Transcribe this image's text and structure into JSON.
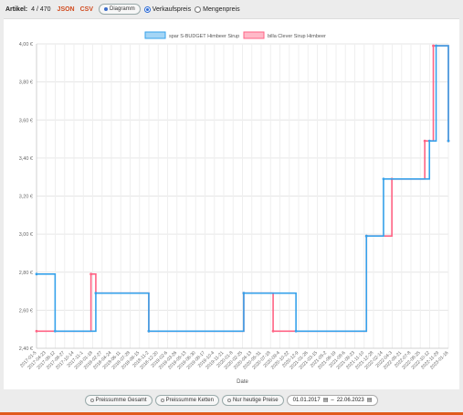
{
  "header": {
    "artikel_label": "Artikel:",
    "artikel_count": "4 / 470",
    "json_label": "JSON",
    "csv_label": "CSV",
    "diagramm_label": "Diagramm",
    "radio_verkaufspreis": "Verkaufspreis",
    "radio_mengenpreis": "Mengenpreis"
  },
  "footer": {
    "btn_gesamt": "Preissumme Gesamt",
    "btn_ketten": "Preissumme Ketten",
    "btn_heutige": "Nur heutige Preise",
    "date_from": "01.01.2017",
    "date_sep": "–",
    "date_to": "22.06.2023"
  },
  "colors": {
    "series_blue": "#36a2eb",
    "series_pink": "#ff6384",
    "accent": "#e05a1c"
  },
  "chart_data": {
    "type": "line",
    "stepped": true,
    "xlabel": "Date",
    "ylabel": "",
    "ylim": [
      2.4,
      4.0
    ],
    "legend_position": "top",
    "grid": true,
    "y_ticks": [
      "4,00 €",
      "3,80 €",
      "3,60 €",
      "3,40 €",
      "3,20 €",
      "3,00 €",
      "2,80 €",
      "2,60 €",
      "2,40 €"
    ],
    "y_tick_values": [
      4.0,
      3.8,
      3.6,
      3.4,
      3.2,
      3.0,
      2.8,
      2.6,
      2.4
    ],
    "x_ticks": [
      "2017-01-5",
      "2017-04-23",
      "2017-08-12",
      "2017-08-27",
      "2017-10-14",
      "2017-11-1",
      "2018-01-18",
      "2018-02-27",
      "2018-04-24",
      "2018-06-11",
      "2018-07-28",
      "2018-09-15",
      "2018-11-2",
      "2018-12-20",
      "2019-02-6",
      "2019-03-26",
      "2019-05-13",
      "2019-06-30",
      "2019-08-17",
      "2019-10-4",
      "2019-11-21",
      "2020-01-8",
      "2020-02-25",
      "2020-04-13",
      "2020-05-31",
      "2020-07-18",
      "2020-09-4",
      "2020-10-22",
      "2020-12-9",
      "2021-01-26",
      "2021-03-15",
      "2021-05-2",
      "2021-06-19",
      "2021-08-6",
      "2021-09-23",
      "2021-11-10",
      "2021-12-28",
      "2022-02-14",
      "2022-04-3",
      "2022-05-21",
      "2022-07-8",
      "2022-08-25",
      "2022-10-12",
      "2022-11-29",
      "2023-01-16"
    ],
    "series": [
      {
        "name": "spar S-BUDGET Himbeer Sirup",
        "color": "#36a2eb",
        "points": [
          [
            "2017-01-05",
            2.79
          ],
          [
            "2017-04-15",
            2.49
          ],
          [
            "2017-11-20",
            2.69
          ],
          [
            "2018-09-01",
            2.49
          ],
          [
            "2020-01-25",
            2.69
          ],
          [
            "2020-11-01",
            2.49
          ],
          [
            "2021-11-15",
            2.99
          ],
          [
            "2022-02-15",
            3.29
          ],
          [
            "2022-10-20",
            3.49
          ],
          [
            "2022-11-25",
            3.99
          ],
          [
            "2023-01-30",
            3.49
          ]
        ]
      },
      {
        "name": "billa Clever Sirup Himbeer",
        "color": "#ff6384",
        "points": [
          [
            "2017-01-05",
            2.49
          ],
          [
            "2017-10-25",
            2.79
          ],
          [
            "2017-11-20",
            2.69
          ],
          [
            "2018-09-01",
            2.49
          ],
          [
            "2020-01-25",
            2.69
          ],
          [
            "2020-07-01",
            2.49
          ],
          [
            "2021-11-15",
            2.99
          ],
          [
            "2022-04-01",
            3.29
          ],
          [
            "2022-09-25",
            3.49
          ],
          [
            "2022-11-10",
            3.99
          ],
          [
            "2023-01-30",
            3.49
          ]
        ]
      }
    ]
  }
}
